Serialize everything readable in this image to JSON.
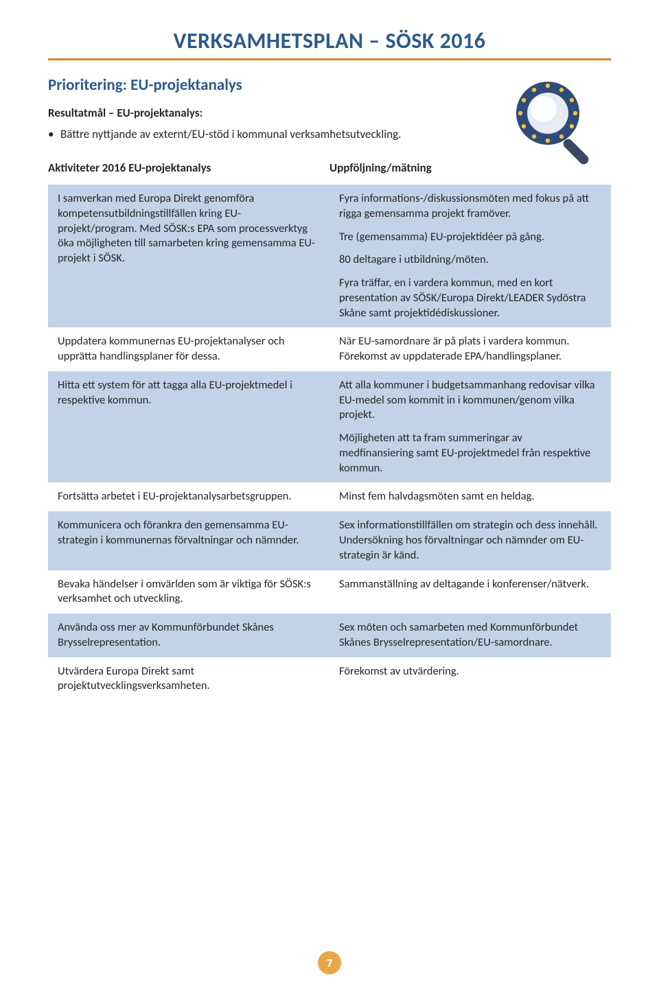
{
  "colors": {
    "heading_blue": "#2e5a8a",
    "rule_orange": "#d9842c",
    "row_shade": "#c2d3e8",
    "page_badge_bg": "#e8a84a",
    "page_badge_text": "#ffffff",
    "body_text": "#262626",
    "icon_ring": "#304a7a",
    "icon_star": "#f4c23c",
    "icon_lens": "#e6ecf2",
    "icon_handle": "#3a4a5e"
  },
  "typography": {
    "title_fontsize": 32,
    "section_fontsize": 23,
    "sub_fontsize": 17,
    "body_fontsize": 16.5,
    "font_family": "Calibri / Segoe UI"
  },
  "doc": {
    "title": "VERKSAMHETSPLAN – SÖSK 2016",
    "section_heading": "Prioritering: EU-projektanalys",
    "result_label": "Resultatmål – EU-projektanalys:",
    "bullet": "Bättre nyttjande av externt/EU-stöd i kommunal verksamhetsutveckling.",
    "page_number": "7"
  },
  "table": {
    "header_left": "Aktiviteter 2016 EU-projektanalys",
    "header_right": "Uppföljning/mätning",
    "rows": [
      {
        "shade": true,
        "left": [
          "I samverkan med Europa Direkt genomföra kompetensutbildningstillfällen kring EU-projekt/program. Med SÖSK:s EPA som processverktyg öka möjligheten till samarbeten kring gemensamma EU-projekt i SÖSK."
        ],
        "right": [
          "Fyra informations-/diskussionsmöten med fokus på att rigga gemensamma projekt framöver.",
          "Tre (gemensamma) EU-projektidéer på gång.",
          "80 deltagare i utbildning/möten.",
          "Fyra träffar, en i vardera kommun, med en kort presentation av SÖSK/Europa Direkt/LEADER Sydöstra Skåne samt projektidédiskussioner."
        ]
      },
      {
        "shade": false,
        "left": [
          "Uppdatera kommunernas EU-projektanalyser och upprätta handlingsplaner för dessa."
        ],
        "right": [
          "När EU-samordnare är på plats i vardera kommun. Förekomst av uppdaterade EPA/handlingsplaner."
        ]
      },
      {
        "shade": true,
        "left": [
          "Hitta ett system för att tagga alla EU-projektmedel i respektive kommun."
        ],
        "right": [
          "Att alla kommuner i budgetsammanhang redovisar vilka EU-medel som kommit in i kommunen/genom vilka projekt.",
          "Möjligheten att ta fram summeringar av medfinansiering samt EU-projektmedel från respektive kommun."
        ]
      },
      {
        "shade": false,
        "left": [
          "Fortsätta arbetet i EU-projektanalys­arbetsgruppen."
        ],
        "right": [
          "Minst fem halvdagsmöten samt en heldag."
        ]
      },
      {
        "shade": true,
        "left": [
          "Kommunicera och förankra den gemensamma EU-strategin i kommunernas förvaltningar och nämnder."
        ],
        "right": [
          "Sex informationstillfällen om strategin och dess innehåll. Undersökning hos förvaltningar och nämnder om EU-strategin är känd."
        ]
      },
      {
        "shade": false,
        "left": [
          "Bevaka händelser i omvärlden som är viktiga för SÖSK:s verksamhet och utveckling."
        ],
        "right": [
          "Sammanställning av deltagande i konferenser/nätverk."
        ]
      },
      {
        "shade": true,
        "left": [
          "Använda oss mer av Kommunförbundet Skånes Brysselrepresentation."
        ],
        "right": [
          "Sex möten och samarbeten med Kommunförbundet Skånes Brysselrepresentation/EU-samordnare."
        ]
      },
      {
        "shade": false,
        "left": [
          "Utvärdera Europa Direkt samt projektutvecklingsverksamheten."
        ],
        "right": [
          "Förekomst av utvärdering."
        ]
      }
    ]
  }
}
